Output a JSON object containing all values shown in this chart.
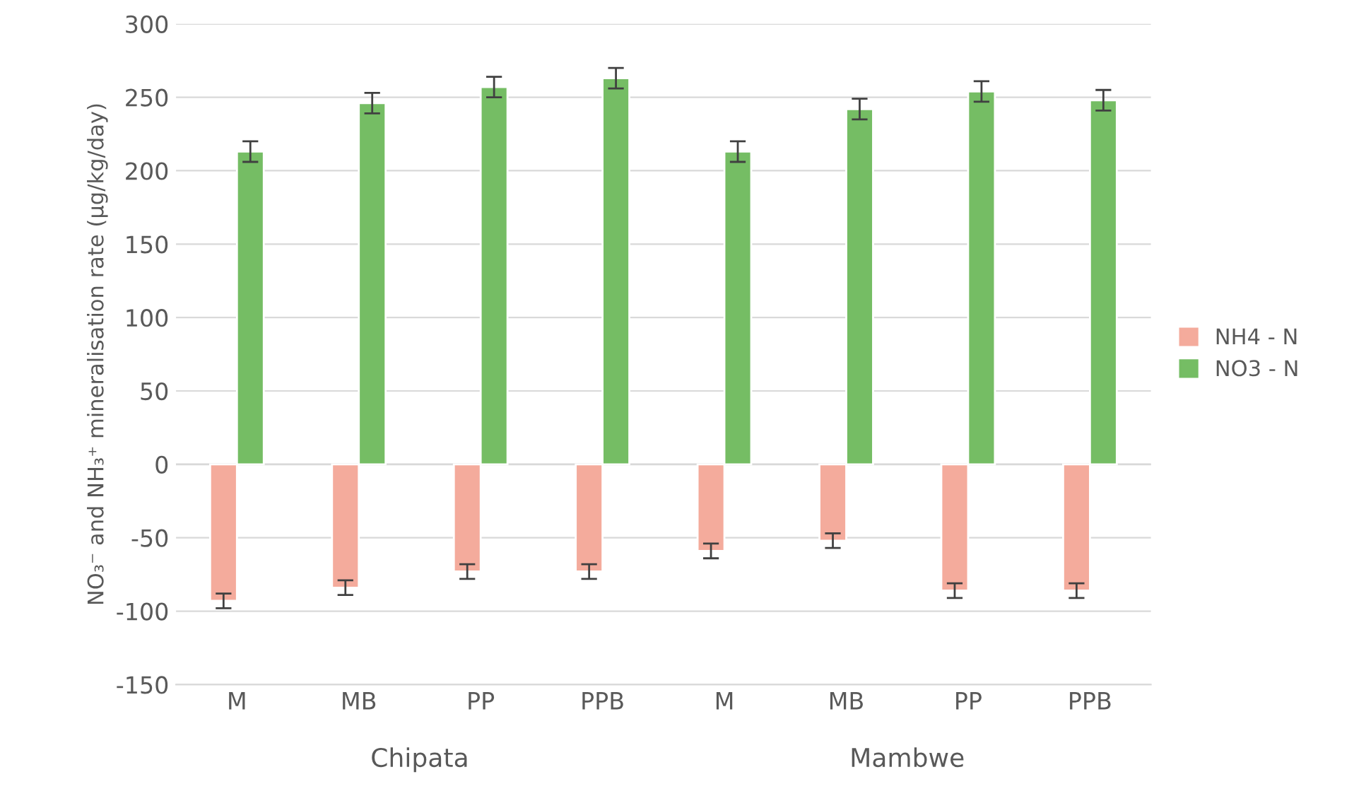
{
  "chart_data": {
    "type": "bar",
    "ylabel": "NO₃⁻ and NH₃⁺ mineralisation rate (µg/kg/day)",
    "categories": [
      "M",
      "MB",
      "PP",
      "PPB",
      "M",
      "MB",
      "PP",
      "PPB"
    ],
    "series": [
      {
        "name": "NH4 - N",
        "color": "#f4ab9c",
        "values": [
          -93,
          -84,
          -73,
          -73,
          -59,
          -52,
          -86,
          -86
        ],
        "errors": [
          5,
          5,
          5,
          5,
          5,
          5,
          5,
          5
        ]
      },
      {
        "name": "NO3 - N",
        "color": "#75bd64",
        "values": [
          213,
          246,
          257,
          263,
          213,
          242,
          254,
          248
        ],
        "errors": [
          7,
          7,
          7,
          7,
          7,
          7,
          7,
          7
        ]
      }
    ],
    "annotations": [
      "Chipata",
      "Mambwe"
    ],
    "ylim": [
      -150,
      300
    ],
    "yticks": [
      -150,
      -100,
      -50,
      0,
      50,
      100,
      150,
      200,
      250,
      300
    ],
    "grid": "y",
    "legend": "right"
  }
}
